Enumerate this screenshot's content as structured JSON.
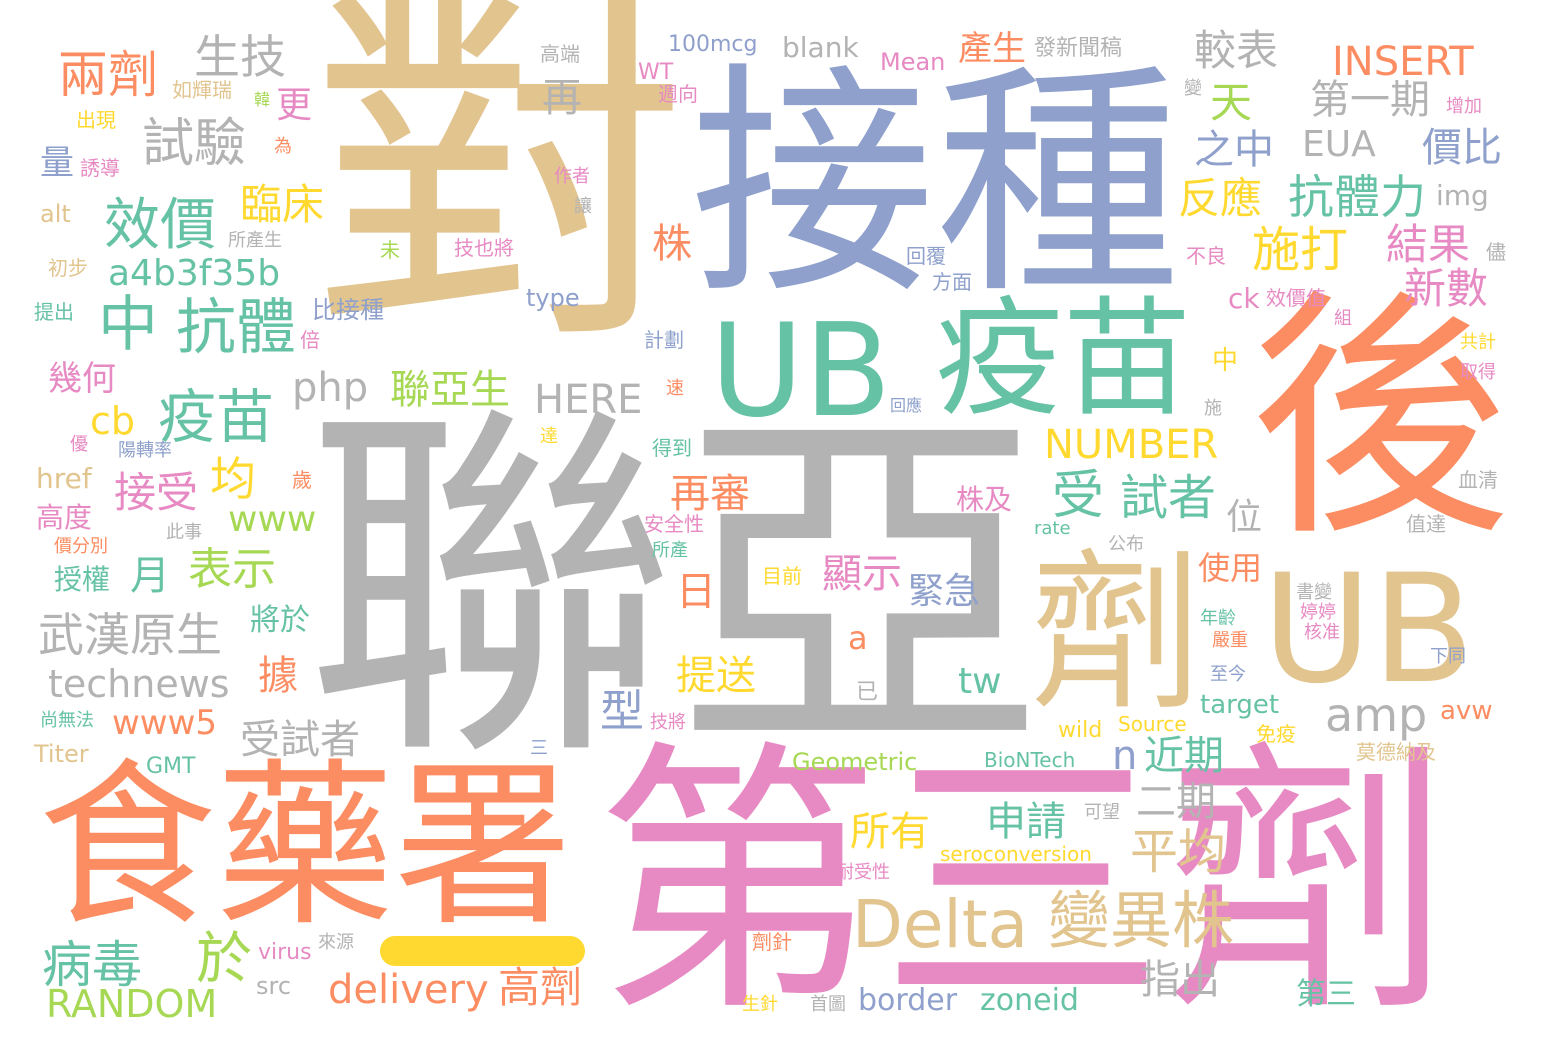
{
  "palette": {
    "tan": "#e2c48f",
    "blue": "#8ea0cb",
    "green": "#66c2a5",
    "orange": "#fc8d62",
    "pink": "#e78ac3",
    "gray": "#b3b3b3",
    "lime": "#a6d854",
    "yellow": "#ffd92f"
  },
  "words": [
    {
      "text": "對",
      "color": "tan"
    },
    {
      "text": "接種",
      "color": "blue"
    },
    {
      "text": "後",
      "color": "orange"
    },
    {
      "text": "聯亞",
      "color": "gray"
    },
    {
      "text": "食藥署",
      "color": "orange"
    },
    {
      "text": "第三劑",
      "color": "pink"
    },
    {
      "text": "UB",
      "color": "green"
    },
    {
      "text": "疫苗",
      "color": "green"
    },
    {
      "text": "劑",
      "color": "tan"
    },
    {
      "text": "UB",
      "color": "tan"
    },
    {
      "text": "Delta",
      "color": "tan"
    },
    {
      "text": "變異株",
      "color": "tan"
    },
    {
      "text": "中",
      "color": "green"
    },
    {
      "text": "抗體",
      "color": "green"
    },
    {
      "text": "疫苗",
      "color": "green"
    },
    {
      "text": "效價",
      "color": "green"
    },
    {
      "text": "試驗",
      "color": "gray"
    },
    {
      "text": "兩劑",
      "color": "orange"
    },
    {
      "text": "生技",
      "color": "gray"
    },
    {
      "text": "武漢原生",
      "color": "gray"
    },
    {
      "text": "technews",
      "color": "gray"
    },
    {
      "text": "病毒",
      "color": "green"
    },
    {
      "text": "於",
      "color": "lime"
    },
    {
      "text": "RANDOM",
      "color": "lime"
    },
    {
      "text": "delivery",
      "color": "orange"
    },
    {
      "text": "高劑",
      "color": "orange"
    },
    {
      "text": "平均",
      "color": "tan"
    },
    {
      "text": "受",
      "color": "green"
    },
    {
      "text": "試者",
      "color": "green"
    },
    {
      "text": "NUMBER",
      "color": "yellow"
    },
    {
      "text": "施打",
      "color": "yellow"
    },
    {
      "text": "抗體力",
      "color": "green"
    },
    {
      "text": "INSERT",
      "color": "orange"
    },
    {
      "text": "較表",
      "color": "gray"
    },
    {
      "text": "第一期",
      "color": "gray"
    },
    {
      "text": "EUA",
      "color": "gray"
    },
    {
      "text": "價比",
      "color": "blue"
    },
    {
      "text": "結果",
      "color": "pink"
    },
    {
      "text": "新數",
      "color": "pink"
    },
    {
      "text": "反應",
      "color": "yellow"
    },
    {
      "text": "之中",
      "color": "blue"
    },
    {
      "text": "天",
      "color": "lime"
    },
    {
      "text": "再",
      "color": "gray"
    },
    {
      "text": "a4b3f35b",
      "color": "green"
    },
    {
      "text": "臨床",
      "color": "yellow"
    },
    {
      "text": "php",
      "color": "gray"
    },
    {
      "text": "聯亞生",
      "color": "lime"
    },
    {
      "text": "HERE",
      "color": "gray"
    },
    {
      "text": "cb",
      "color": "yellow"
    },
    {
      "text": "均",
      "color": "yellow"
    },
    {
      "text": "接受",
      "color": "pink"
    },
    {
      "text": "www",
      "color": "lime"
    },
    {
      "text": "表示",
      "color": "lime"
    },
    {
      "text": "月",
      "color": "green"
    },
    {
      "text": "再審",
      "color": "orange"
    },
    {
      "text": "顯示",
      "color": "pink"
    },
    {
      "text": "緊急",
      "color": "blue"
    },
    {
      "text": "提送",
      "color": "yellow"
    },
    {
      "text": "型",
      "color": "blue"
    },
    {
      "text": "www5",
      "color": "orange"
    },
    {
      "text": "受試者",
      "color": "gray"
    },
    {
      "text": "amp",
      "color": "gray"
    },
    {
      "text": "n",
      "color": "blue"
    },
    {
      "text": "近期",
      "color": "green"
    },
    {
      "text": "二期",
      "color": "gray"
    },
    {
      "text": "申請",
      "color": "green"
    },
    {
      "text": "所有",
      "color": "yellow"
    },
    {
      "text": "指出",
      "color": "gray"
    },
    {
      "text": "使用",
      "color": "orange"
    },
    {
      "text": "位",
      "color": "gray"
    },
    {
      "text": "tw",
      "color": "green"
    },
    {
      "text": "border",
      "color": "blue"
    },
    {
      "text": "zoneid",
      "color": "green"
    },
    {
      "text": "第三",
      "color": "green"
    },
    {
      "text": "幾何",
      "color": "pink"
    },
    {
      "text": "量",
      "color": "blue"
    },
    {
      "text": "更",
      "color": "pink"
    },
    {
      "text": "株",
      "color": "orange"
    },
    {
      "text": "日",
      "color": "orange"
    },
    {
      "text": "a",
      "color": "orange"
    },
    {
      "text": "產生",
      "color": "orange"
    },
    {
      "text": "blank",
      "color": "gray"
    },
    {
      "text": "100mcg",
      "color": "blue"
    },
    {
      "text": "發新聞稿",
      "color": "gray"
    },
    {
      "text": "Mean",
      "color": "pink"
    },
    {
      "text": "WT",
      "color": "pink"
    },
    {
      "text": "img",
      "color": "gray"
    },
    {
      "text": "ck",
      "color": "pink"
    },
    {
      "text": "效價值",
      "color": "pink"
    },
    {
      "text": "type",
      "color": "blue"
    },
    {
      "text": "比接種",
      "color": "blue"
    },
    {
      "text": "href",
      "color": "tan"
    },
    {
      "text": "高度",
      "color": "pink"
    },
    {
      "text": "授權",
      "color": "green"
    },
    {
      "text": "將於",
      "color": "green"
    },
    {
      "text": "據",
      "color": "orange"
    },
    {
      "text": "株及",
      "color": "pink"
    },
    {
      "text": "目前",
      "color": "yellow"
    },
    {
      "text": "Geometric",
      "color": "lime"
    },
    {
      "text": "BioNTech",
      "color": "green"
    },
    {
      "text": "wild",
      "color": "yellow"
    },
    {
      "text": "Source",
      "color": "yellow"
    },
    {
      "text": "target",
      "color": "green"
    },
    {
      "text": "avw",
      "color": "orange"
    },
    {
      "text": "seroconversion",
      "color": "yellow"
    },
    {
      "text": "GMT",
      "color": "green"
    },
    {
      "text": "Titer",
      "color": "tan"
    },
    {
      "text": "src",
      "color": "gray"
    },
    {
      "text": "virus",
      "color": "pink"
    },
    {
      "text": "alt",
      "color": "tan"
    },
    {
      "text": "初步",
      "color": "tan"
    },
    {
      "text": "提出",
      "color": "green"
    },
    {
      "text": "如輝瑞",
      "color": "tan"
    },
    {
      "text": "出現",
      "color": "yellow"
    },
    {
      "text": "誘導",
      "color": "pink"
    },
    {
      "text": "為",
      "color": "orange"
    },
    {
      "text": "韓",
      "color": "lime"
    },
    {
      "text": "高端",
      "color": "gray"
    },
    {
      "text": "週向",
      "color": "pink"
    },
    {
      "text": "作者",
      "color": "pink"
    },
    {
      "text": "讓",
      "color": "gray"
    },
    {
      "text": "所產生",
      "color": "gray"
    },
    {
      "text": "未",
      "color": "lime"
    },
    {
      "text": "技也將",
      "color": "pink"
    },
    {
      "text": "回覆",
      "color": "blue"
    },
    {
      "text": "方面",
      "color": "blue"
    },
    {
      "text": "不良",
      "color": "pink"
    },
    {
      "text": "儘",
      "color": "gray"
    },
    {
      "text": "組",
      "color": "pink"
    },
    {
      "text": "共計",
      "color": "yellow"
    },
    {
      "text": "取得",
      "color": "pink"
    },
    {
      "text": "增加",
      "color": "pink"
    },
    {
      "text": "變",
      "color": "gray"
    },
    {
      "text": "中",
      "color": "yellow"
    },
    {
      "text": "施",
      "color": "gray"
    },
    {
      "text": "血清",
      "color": "gray"
    },
    {
      "text": "計劃",
      "color": "blue"
    },
    {
      "text": "速",
      "color": "orange"
    },
    {
      "text": "回應",
      "color": "blue"
    },
    {
      "text": "倍",
      "color": "pink"
    },
    {
      "text": "優",
      "color": "pink"
    },
    {
      "text": "陽轉率",
      "color": "blue"
    },
    {
      "text": "達",
      "color": "yellow"
    },
    {
      "text": "得到",
      "color": "green"
    },
    {
      "text": "歲",
      "color": "orange"
    },
    {
      "text": "安全性",
      "color": "pink"
    },
    {
      "text": "此事",
      "color": "gray"
    },
    {
      "text": "價分別",
      "color": "orange"
    },
    {
      "text": "所產",
      "color": "green"
    },
    {
      "text": "值達",
      "color": "gray"
    },
    {
      "text": "公布",
      "color": "gray"
    },
    {
      "text": "rate",
      "color": "green"
    },
    {
      "text": "書變",
      "color": "gray"
    },
    {
      "text": "婷婷",
      "color": "pink"
    },
    {
      "text": "核准",
      "color": "pink"
    },
    {
      "text": "年齡",
      "color": "green"
    },
    {
      "text": "嚴重",
      "color": "orange"
    },
    {
      "text": "下同",
      "color": "blue"
    },
    {
      "text": "至今",
      "color": "blue"
    },
    {
      "text": "已",
      "color": "gray"
    },
    {
      "text": "尚無法",
      "color": "green"
    },
    {
      "text": "技將",
      "color": "pink"
    },
    {
      "text": "三",
      "color": "blue"
    },
    {
      "text": "免疫",
      "color": "yellow"
    },
    {
      "text": "莫德納及",
      "color": "tan"
    },
    {
      "text": "可望",
      "color": "gray"
    },
    {
      "text": "耐受性",
      "color": "pink"
    },
    {
      "text": "來源",
      "color": "gray"
    },
    {
      "text": "劑針",
      "color": "orange"
    },
    {
      "text": "生針",
      "color": "yellow"
    },
    {
      "text": "首圖",
      "color": "gray"
    }
  ]
}
